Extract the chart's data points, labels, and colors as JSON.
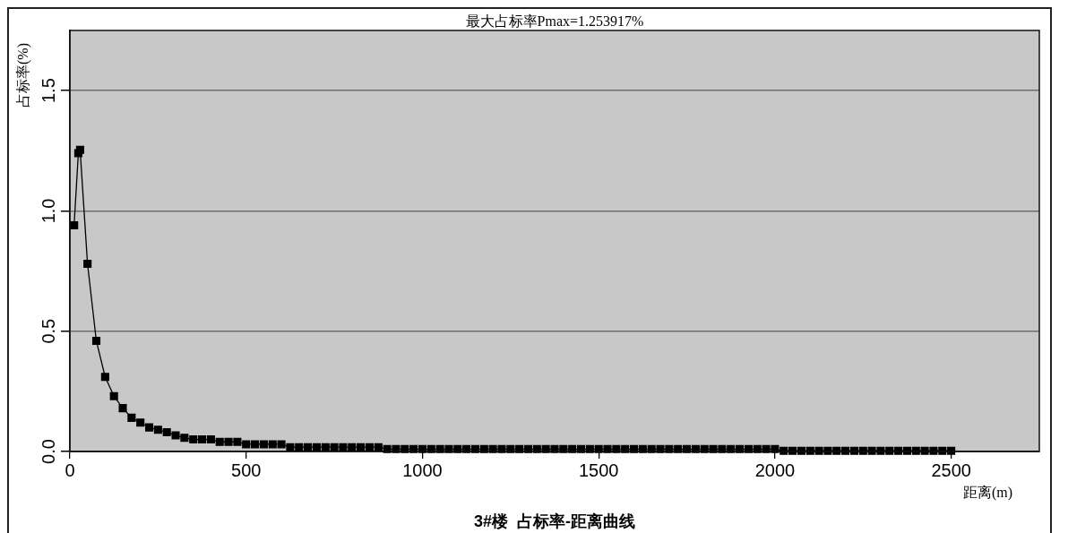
{
  "chart_data": {
    "type": "line",
    "title": "3#楼  占标率-距离曲线",
    "subtitle": "最大占标率Pmax=1.253917%",
    "xlabel": "距离(m)",
    "ylabel": "占标率(%)",
    "x": [
      12,
      24,
      29,
      50,
      75,
      100,
      125,
      150,
      175,
      200,
      225,
      250,
      275,
      300,
      325,
      350,
      375,
      400,
      425,
      450,
      475,
      500,
      525,
      550,
      575,
      600,
      625,
      650,
      675,
      700,
      725,
      750,
      775,
      800,
      825,
      850,
      875,
      900,
      925,
      950,
      975,
      1000,
      1025,
      1050,
      1075,
      1100,
      1125,
      1150,
      1175,
      1200,
      1225,
      1250,
      1275,
      1300,
      1325,
      1350,
      1375,
      1400,
      1425,
      1450,
      1475,
      1500,
      1525,
      1550,
      1575,
      1600,
      1625,
      1650,
      1675,
      1700,
      1725,
      1750,
      1775,
      1800,
      1825,
      1850,
      1875,
      1900,
      1925,
      1950,
      1975,
      2000,
      2025,
      2050,
      2075,
      2100,
      2125,
      2150,
      2175,
      2200,
      2225,
      2250,
      2275,
      2300,
      2325,
      2350,
      2375,
      2400,
      2425,
      2450,
      2475,
      2500
    ],
    "values": [
      0.94,
      1.24,
      1.254,
      0.78,
      0.46,
      0.31,
      0.23,
      0.18,
      0.14,
      0.12,
      0.1,
      0.09,
      0.08,
      0.067,
      0.057,
      0.05,
      0.05,
      0.05,
      0.04,
      0.04,
      0.04,
      0.03,
      0.03,
      0.03,
      0.03,
      0.03,
      0.018,
      0.018,
      0.018,
      0.018,
      0.018,
      0.018,
      0.018,
      0.018,
      0.018,
      0.018,
      0.018,
      0.01,
      0.01,
      0.01,
      0.01,
      0.01,
      0.01,
      0.01,
      0.01,
      0.01,
      0.01,
      0.01,
      0.01,
      0.01,
      0.01,
      0.01,
      0.01,
      0.01,
      0.01,
      0.01,
      0.01,
      0.01,
      0.01,
      0.01,
      0.01,
      0.01,
      0.01,
      0.01,
      0.01,
      0.01,
      0.01,
      0.01,
      0.01,
      0.01,
      0.01,
      0.01,
      0.01,
      0.01,
      0.01,
      0.01,
      0.01,
      0.01,
      0.01,
      0.01,
      0.01,
      0.01,
      0.003,
      0.003,
      0.003,
      0.003,
      0.003,
      0.003,
      0.003,
      0.003,
      0.003,
      0.003,
      0.003,
      0.003,
      0.003,
      0.003,
      0.003,
      0.003,
      0.003,
      0.003,
      0.003,
      0.003
    ],
    "color": "#000000",
    "xlim": [
      0,
      2750
    ],
    "xticks": [
      0,
      500,
      1000,
      1500,
      2000,
      2500
    ],
    "ylim": [
      0,
      1.75
    ],
    "yticks": [
      {
        "value": 0,
        "label": "0.0"
      },
      0.5,
      {
        "value": 1,
        "label": "1.0"
      },
      1.5
    ],
    "grid": "y",
    "legend": false,
    "marker": "square",
    "line_style": "solid"
  }
}
